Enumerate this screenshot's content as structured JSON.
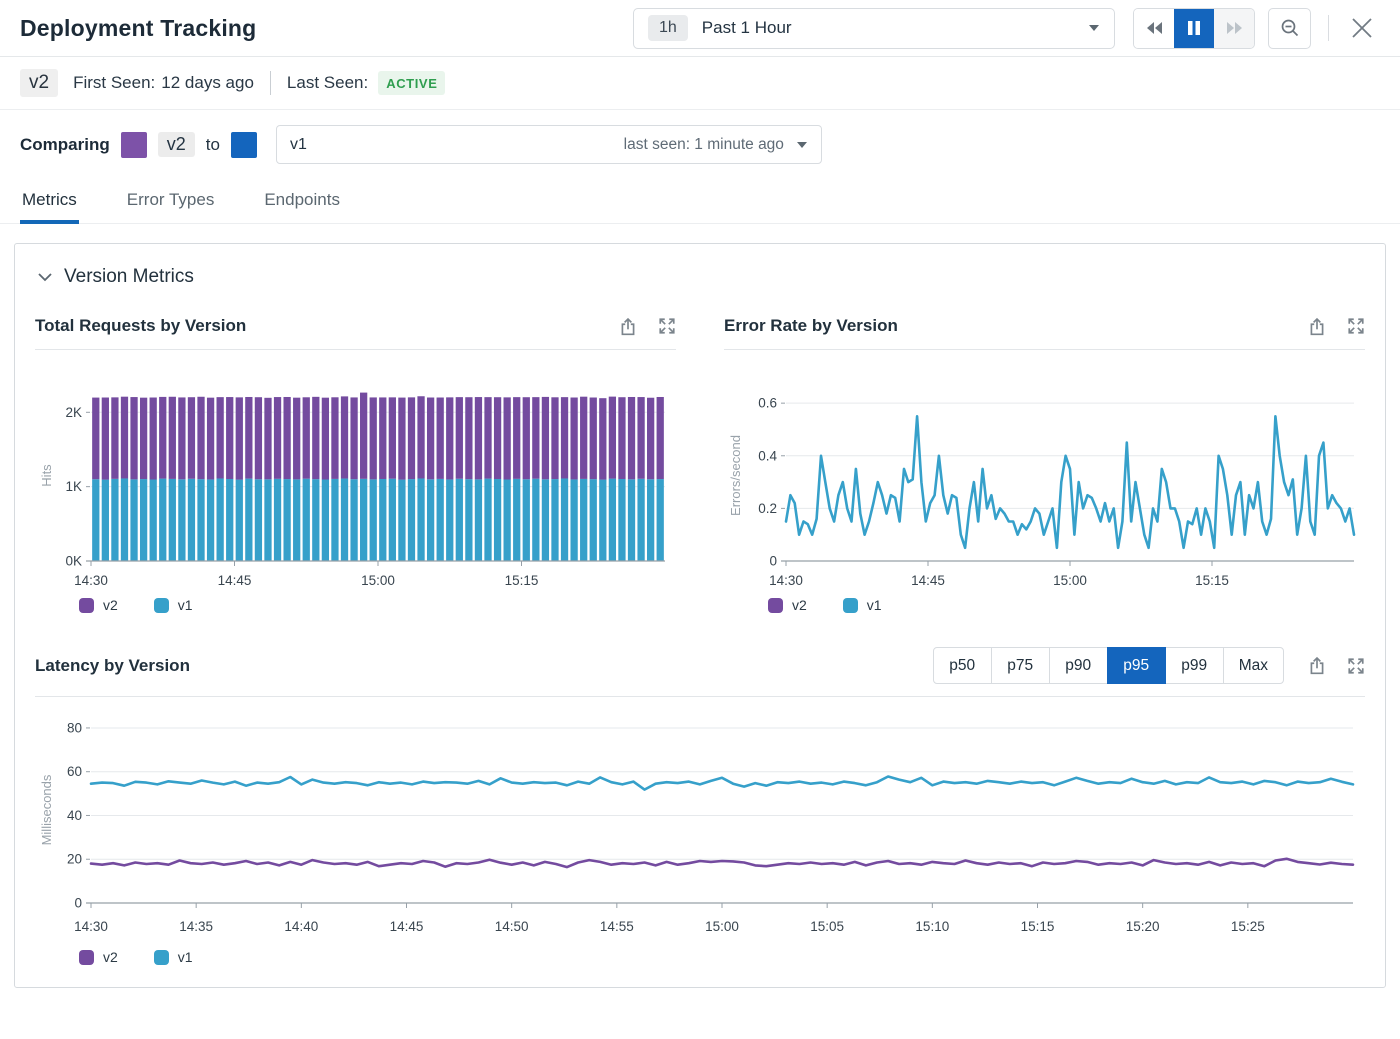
{
  "header": {
    "title": "Deployment Tracking",
    "time_range": {
      "badge": "1h",
      "label": "Past 1 Hour"
    },
    "icons": {
      "rewind": "double-triangle-left",
      "pause": "pause-bars",
      "fast_forward": "double-triangle-right",
      "zoom_out": "magnifier-minus",
      "close": "x",
      "caret_down": "filled-triangle-down",
      "export": "share-box-arrow-up",
      "expand": "four-corner-arrows",
      "chevron_down": "chevron-down"
    }
  },
  "version_bar": {
    "version": "v2",
    "first_seen_label": "First Seen:",
    "first_seen_value": "12 days ago",
    "last_seen_label": "Last Seen:",
    "status": "ACTIVE",
    "status_color": "#2f9e4f",
    "status_bg": "#e9f5ec"
  },
  "comparing": {
    "label": "Comparing",
    "left_version": "v2",
    "to_label": "to",
    "left_color": "#7d52a8",
    "right_color": "#1465bd",
    "selected_version": "v1",
    "selected_meta": "last seen: 1 minute ago"
  },
  "tabs": [
    {
      "label": "Metrics",
      "active": true
    },
    {
      "label": "Error Types",
      "active": false
    },
    {
      "label": "Endpoints",
      "active": false
    }
  ],
  "section": {
    "title": "Version Metrics"
  },
  "percentiles": {
    "options": [
      "p50",
      "p75",
      "p90",
      "p95",
      "p99",
      "Max"
    ],
    "selected": "p95"
  },
  "legend": [
    {
      "label": "v2",
      "color": "#744b9f"
    },
    {
      "label": "v1",
      "color": "#36a0ca"
    }
  ],
  "colors": {
    "v2_purple": "#744b9f",
    "v1_blue": "#36a0ca",
    "accent_blue": "#1465bd",
    "tab_underline": "#1368b8",
    "grid": "#e6e9ec",
    "axis": "#97a0a8",
    "tick_text": "#39454f",
    "axis_label": "#99a2aa"
  },
  "chart_data": [
    {
      "type": "bar-stacked",
      "title": "Total Requests by Version",
      "ylabel": "Hits",
      "x_start": "14:30",
      "span_minutes": 60,
      "interval_minutes": 1,
      "x_ticks": [
        "14:30",
        "14:45",
        "15:00",
        "15:15"
      ],
      "y_ticks": [
        "0K",
        "1K",
        "2K"
      ],
      "y_tick_values": [
        0,
        1000,
        2000
      ],
      "grid_values": [
        1000,
        2000
      ],
      "ylim": [
        0,
        2300
      ],
      "legend": [
        "v2",
        "v1"
      ],
      "series": [
        {
          "name": "v1",
          "color": "#36a0ca",
          "values": [
            1100,
            1095,
            1105,
            1110,
            1098,
            1102,
            1096,
            1108,
            1104,
            1099,
            1106,
            1101,
            1097,
            1110,
            1103,
            1095,
            1108,
            1100,
            1099,
            1105,
            1102,
            1098,
            1107,
            1101,
            1096,
            1104,
            1109,
            1100,
            1105,
            1098,
            1103,
            1107,
            1095,
            1102,
            1110,
            1099,
            1104,
            1097,
            1106,
            1101,
            1098,
            1108,
            1103,
            1096,
            1105,
            1100,
            1107,
            1099,
            1102,
            1110,
            1097,
            1104,
            1101,
            1095,
            1108,
            1103,
            1099,
            1106,
            1100,
            1102
          ]
        },
        {
          "name": "v2",
          "color": "#744b9f",
          "values": [
            1098,
            1104,
            1096,
            1100,
            1107,
            1095,
            1103,
            1099,
            1105,
            1101,
            1097,
            1108,
            1100,
            1094,
            1102,
            1106,
            1098,
            1103,
            1096,
            1100,
            1104,
            1099,
            1095,
            1107,
            1101,
            1098,
            1105,
            1100,
            1160,
            1102,
            1097,
            1094,
            1103,
            1099,
            1106,
            1100,
            1095,
            1104,
            1098,
            1102,
            1107,
            1096,
            1100,
            1105,
            1099,
            1103,
            1097,
            1108,
            1100,
            1094,
            1102,
            1106,
            1098,
            1095,
            1103,
            1100,
            1107,
            1099,
            1096,
            1104
          ]
        }
      ]
    },
    {
      "type": "line",
      "title": "Error Rate by Version",
      "ylabel": "Errors/second",
      "x_start": "14:30",
      "span_minutes": 60,
      "x_ticks": [
        "14:30",
        "14:45",
        "15:00",
        "15:15"
      ],
      "y_ticks": [
        "0",
        "0.2",
        "0.4",
        "0.6"
      ],
      "y_tick_values": [
        0,
        0.2,
        0.4,
        0.6
      ],
      "grid_values": [
        0.2,
        0.4,
        0.6
      ],
      "ylim": [
        0,
        0.65
      ],
      "legend": [
        "v2",
        "v1"
      ],
      "series": [
        {
          "name": "v2",
          "color": "#744b9f",
          "values": []
        },
        {
          "name": "v1",
          "color": "#36a0ca",
          "values": [
            0.15,
            0.25,
            0.22,
            0.1,
            0.15,
            0.14,
            0.1,
            0.16,
            0.4,
            0.3,
            0.2,
            0.15,
            0.25,
            0.3,
            0.2,
            0.15,
            0.35,
            0.18,
            0.1,
            0.15,
            0.22,
            0.3,
            0.25,
            0.18,
            0.25,
            0.24,
            0.15,
            0.35,
            0.3,
            0.31,
            0.55,
            0.3,
            0.15,
            0.22,
            0.25,
            0.4,
            0.25,
            0.18,
            0.25,
            0.24,
            0.1,
            0.05,
            0.2,
            0.3,
            0.15,
            0.35,
            0.2,
            0.25,
            0.16,
            0.2,
            0.18,
            0.15,
            0.15,
            0.1,
            0.14,
            0.12,
            0.15,
            0.2,
            0.18,
            0.1,
            0.15,
            0.2,
            0.05,
            0.3,
            0.4,
            0.35,
            0.1,
            0.3,
            0.2,
            0.25,
            0.24,
            0.2,
            0.15,
            0.22,
            0.15,
            0.2,
            0.05,
            0.15,
            0.45,
            0.15,
            0.3,
            0.2,
            0.1,
            0.05,
            0.2,
            0.15,
            0.35,
            0.3,
            0.2,
            0.2,
            0.15,
            0.05,
            0.15,
            0.14,
            0.2,
            0.1,
            0.2,
            0.15,
            0.05,
            0.4,
            0.35,
            0.25,
            0.1,
            0.25,
            0.3,
            0.1,
            0.25,
            0.2,
            0.3,
            0.15,
            0.1,
            0.16,
            0.55,
            0.4,
            0.3,
            0.25,
            0.31,
            0.1,
            0.2,
            0.4,
            0.15,
            0.1,
            0.4,
            0.45,
            0.2,
            0.25,
            0.22,
            0.2,
            0.15,
            0.2,
            0.1
          ]
        }
      ]
    },
    {
      "type": "line",
      "title": "Latency by Version",
      "ylabel": "Milliseconds",
      "x_start": "14:30",
      "span_minutes": 60,
      "x_ticks": [
        "14:30",
        "14:35",
        "14:40",
        "14:45",
        "14:50",
        "14:55",
        "15:00",
        "15:05",
        "15:10",
        "15:15",
        "15:20",
        "15:25"
      ],
      "y_ticks": [
        "0",
        "20",
        "40",
        "60",
        "80"
      ],
      "y_tick_values": [
        0,
        20,
        40,
        60,
        80
      ],
      "grid_values": [
        20,
        40,
        60,
        80
      ],
      "ylim": [
        0,
        85
      ],
      "legend": [
        "v2",
        "v1"
      ],
      "series": [
        {
          "name": "v2",
          "color": "#744b9f",
          "values": [
            18,
            17.5,
            18.2,
            17.2,
            18.5,
            17.8,
            18.2,
            17.5,
            19.4,
            18.2,
            17.8,
            18.5,
            17.5,
            18.2,
            19.2,
            17.8,
            18.5,
            17.2,
            18.8,
            17.5,
            19.6,
            18.5,
            17.8,
            18.2,
            17.5,
            18.8,
            16.8,
            17.5,
            18.2,
            17.8,
            19.2,
            18.5,
            16.6,
            18.2,
            17.8,
            18.5,
            19.8,
            18.4,
            17.5,
            18.5,
            17.2,
            18.8,
            17.8,
            16.4,
            18.5,
            19.6,
            18.8,
            17.5,
            18.2,
            17.8,
            18.5,
            17.2,
            18.8,
            17.5,
            18.2,
            19.2,
            18.8,
            19.2,
            19,
            18.5,
            17.2,
            16.8,
            17.5,
            18.2,
            17.8,
            18.5,
            17.8,
            18.2,
            17.5,
            18.8,
            17.2,
            18.5,
            19.2,
            17.8,
            18.2,
            17.5,
            18.8,
            18.2,
            17.8,
            19.4,
            18.2,
            17.5,
            18.5,
            17.8,
            18.2,
            16.8,
            18.5,
            17.8,
            18.2,
            19.2,
            18.8,
            17.5,
            18.2,
            17.8,
            18.5,
            17.2,
            19.6,
            18.5,
            17.8,
            18.2,
            17.5,
            18.8,
            17.2,
            18.5,
            17.8,
            18.2,
            16.8,
            19.4,
            20.2,
            18.8,
            18.2,
            17.6,
            18.4,
            17.8,
            17.5
          ]
        },
        {
          "name": "v1",
          "color": "#36a0ca",
          "values": [
            54.5,
            55,
            54.8,
            53.6,
            55.4,
            55,
            54.2,
            55.6,
            55,
            54.5,
            56,
            55,
            54.2,
            55.5,
            53.6,
            55,
            54.5,
            55.2,
            57.6,
            54.2,
            56.4,
            55,
            54.5,
            55.2,
            54.8,
            53.8,
            55.2,
            54.5,
            55,
            54.2,
            55.5,
            54.8,
            55.2,
            55,
            54.5,
            55.8,
            54.2,
            57,
            55,
            54.5,
            55.2,
            54.8,
            55,
            53.8,
            55.5,
            54.5,
            57.4,
            55.2,
            54.2,
            55.5,
            51.8,
            54.5,
            55.2,
            54.8,
            55.5,
            54.2,
            55.8,
            57.2,
            54.5,
            53.2,
            54.8,
            53.6,
            55.2,
            54.8,
            55.5,
            54.5,
            55,
            54.2,
            55.5,
            54.8,
            53.8,
            55.2,
            57.8,
            56.4,
            55.2,
            57.2,
            53.8,
            55.5,
            54.8,
            55.2,
            54.5,
            55.8,
            55.2,
            54.5,
            55.5,
            54.8,
            55.2,
            53.8,
            55.5,
            57.2,
            55.8,
            54.5,
            55.2,
            54.8,
            56.8,
            55.2,
            54.5,
            55.8,
            54.2,
            55.2,
            54.8,
            57.4,
            55.2,
            54.8,
            55.5,
            54.2,
            55.8,
            55.2,
            53.8,
            55.5,
            54.8,
            55.2,
            56.8,
            55.4,
            54.2
          ]
        }
      ]
    }
  ]
}
